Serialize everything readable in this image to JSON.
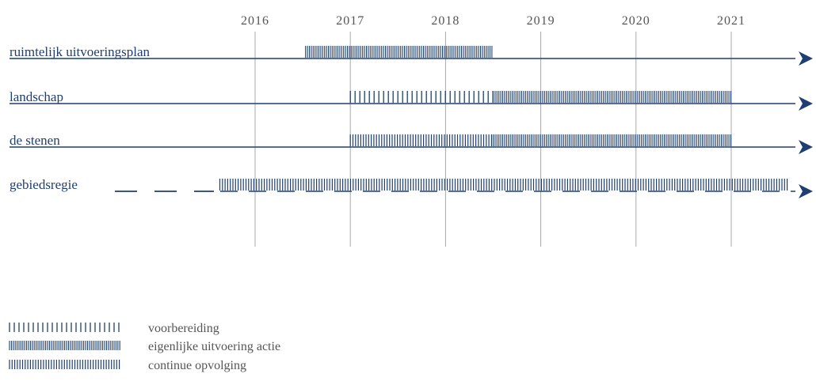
{
  "years": [
    "2016",
    "2017",
    "2018",
    "2019",
    "2020",
    "2021"
  ],
  "rows": [
    {
      "label": "ruimtelijk uitvoeringsplan",
      "segments": [
        {
          "start": 2016.53,
          "end": 2018.5,
          "type": "uitvoering"
        }
      ]
    },
    {
      "label": "landschap",
      "segments": [
        {
          "start": 2017.0,
          "end": 2018.5,
          "type": "voorbereiding"
        },
        {
          "start": 2018.5,
          "end": 2021.0,
          "type": "uitvoering"
        }
      ]
    },
    {
      "label": "de stenen",
      "segments": [
        {
          "start": 2017.0,
          "end": 2018.5,
          "type": "opvolging"
        },
        {
          "start": 2018.5,
          "end": 2021.0,
          "type": "uitvoering"
        }
      ]
    },
    {
      "label": "gebiedsregie",
      "segments": [
        {
          "start": 2015.63,
          "end": 2021.6,
          "type": "opvolging"
        }
      ]
    }
  ],
  "legend": [
    {
      "type": "voorbereiding",
      "label": "voorbereiding"
    },
    {
      "type": "uitvoering",
      "label": "eigenlijke uitvoering actie"
    },
    {
      "type": "opvolging",
      "label": "continue opvolging"
    }
  ],
  "colors": {
    "line": "#1f3f73",
    "grid": "#a8a8a8",
    "hatch": "#1f3f73",
    "text": "#555555"
  },
  "icons": {
    "arrow": "arrow-right-icon"
  }
}
